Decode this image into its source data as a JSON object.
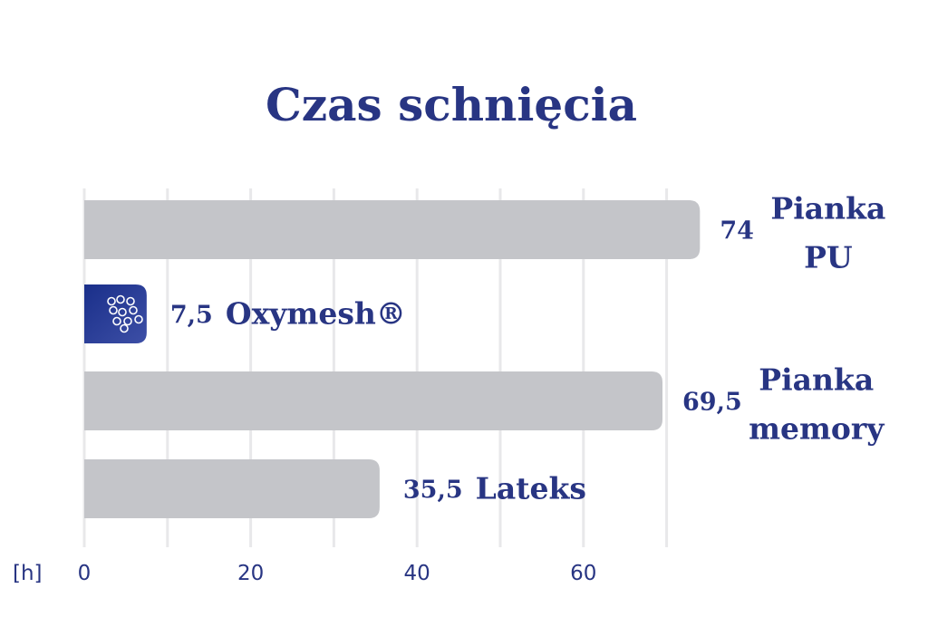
{
  "chart_data": {
    "type": "bar",
    "orientation": "horizontal",
    "title": "Czas schnięcia",
    "unit_label": "[h]",
    "categories": [
      "Pianka PU",
      "Oxymesh®",
      "Pianka memory",
      "Lateks"
    ],
    "values": [
      74,
      7.5,
      69.5,
      35.5
    ],
    "value_labels": [
      "74",
      "7,5",
      "69,5",
      "35,5"
    ],
    "label_lines": [
      [
        "Pianka",
        "PU"
      ],
      [
        "Oxymesh®"
      ],
      [
        "Pianka",
        "memory"
      ],
      [
        "Lateks"
      ]
    ],
    "highlight_index": 1,
    "xlim": [
      0,
      80
    ],
    "xticks": [
      0,
      20,
      40,
      60
    ],
    "x_gridlines": [
      0,
      10,
      20,
      30,
      40,
      50,
      60,
      70
    ],
    "grid": true,
    "colors": {
      "bar": "#c4c5c9",
      "highlight_start": "#1a2f8a",
      "highlight_end": "#3d4fa6",
      "text": "#283583",
      "grid": "#e8e8ea"
    }
  }
}
